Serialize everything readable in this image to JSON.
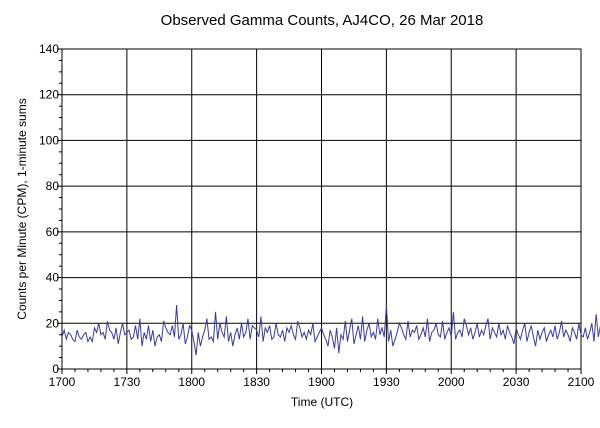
{
  "chart_data": {
    "type": "line",
    "title": "Observed Gamma Counts, AJ4CO, 26 Mar 2018",
    "xlabel": "Time (UTC)",
    "ylabel": "Counts per Minute (CPM), 1-minute sums",
    "x_tick_labels": [
      "1700",
      "1730",
      "1800",
      "1830",
      "1900",
      "1930",
      "2000",
      "2030",
      "2100"
    ],
    "y_ticks": [
      0,
      20,
      40,
      60,
      80,
      100,
      120,
      140
    ],
    "xlim": [
      "17:00",
      "21:00"
    ],
    "ylim": [
      0,
      140
    ],
    "grid": true,
    "line_color": "#3a3a9a",
    "series": [
      {
        "x_start": "17:00",
        "x_step_minutes": 1,
        "values": [
          14,
          17,
          13,
          16,
          15,
          13,
          12,
          17,
          14,
          13,
          15,
          16,
          12,
          14,
          12,
          18,
          16,
          20,
          15,
          16,
          13,
          21,
          17,
          16,
          13,
          18,
          11,
          16,
          20,
          15,
          16,
          17,
          13,
          14,
          19,
          13,
          22,
          10,
          16,
          13,
          19,
          12,
          17,
          10,
          14,
          15,
          12,
          21,
          18,
          16,
          15,
          19,
          14,
          28,
          13,
          15,
          20,
          11,
          14,
          19,
          17,
          12,
          6,
          16,
          10,
          14,
          17,
          22,
          13,
          14,
          12,
          25,
          13,
          20,
          16,
          14,
          23,
          12,
          16,
          10,
          15,
          18,
          13,
          20,
          14,
          16,
          22,
          13,
          19,
          18,
          17,
          14,
          23,
          12,
          18,
          16,
          19,
          13,
          14,
          20,
          15,
          14,
          17,
          12,
          18,
          16,
          19,
          15,
          13,
          21,
          18,
          14,
          16,
          13,
          17,
          15,
          20,
          12,
          14,
          16,
          18,
          15,
          13,
          10,
          17,
          14,
          9,
          18,
          7,
          15,
          13,
          21,
          12,
          17,
          22,
          11,
          15,
          19,
          13,
          23,
          12,
          17,
          20,
          14,
          16,
          13,
          22,
          15,
          18,
          14,
          28,
          12,
          17,
          10,
          13,
          16,
          20,
          18,
          15,
          13,
          21,
          14,
          17,
          16,
          19,
          13,
          15,
          18,
          14,
          22,
          12,
          16,
          17,
          20,
          15,
          14,
          21,
          13,
          16,
          18,
          14,
          25,
          13,
          16,
          17,
          14,
          22,
          19,
          15,
          18,
          13,
          16,
          20,
          14,
          17,
          15,
          19,
          22,
          13,
          18,
          16,
          14,
          20,
          15,
          17,
          13,
          19,
          16,
          14,
          11,
          18,
          15,
          13,
          17,
          20,
          12,
          16,
          19,
          14,
          10,
          17,
          13,
          16,
          18,
          12,
          15,
          17,
          14,
          19,
          13,
          16,
          21,
          14,
          17,
          15,
          12,
          18,
          16,
          13,
          20,
          15,
          14,
          18,
          13,
          16,
          20,
          12,
          24,
          14,
          19,
          15,
          13,
          17,
          18,
          14,
          22,
          16,
          13,
          19,
          15,
          12,
          21,
          14,
          17,
          16,
          20,
          13,
          15,
          18,
          10,
          14,
          17
        ]
      }
    ]
  }
}
